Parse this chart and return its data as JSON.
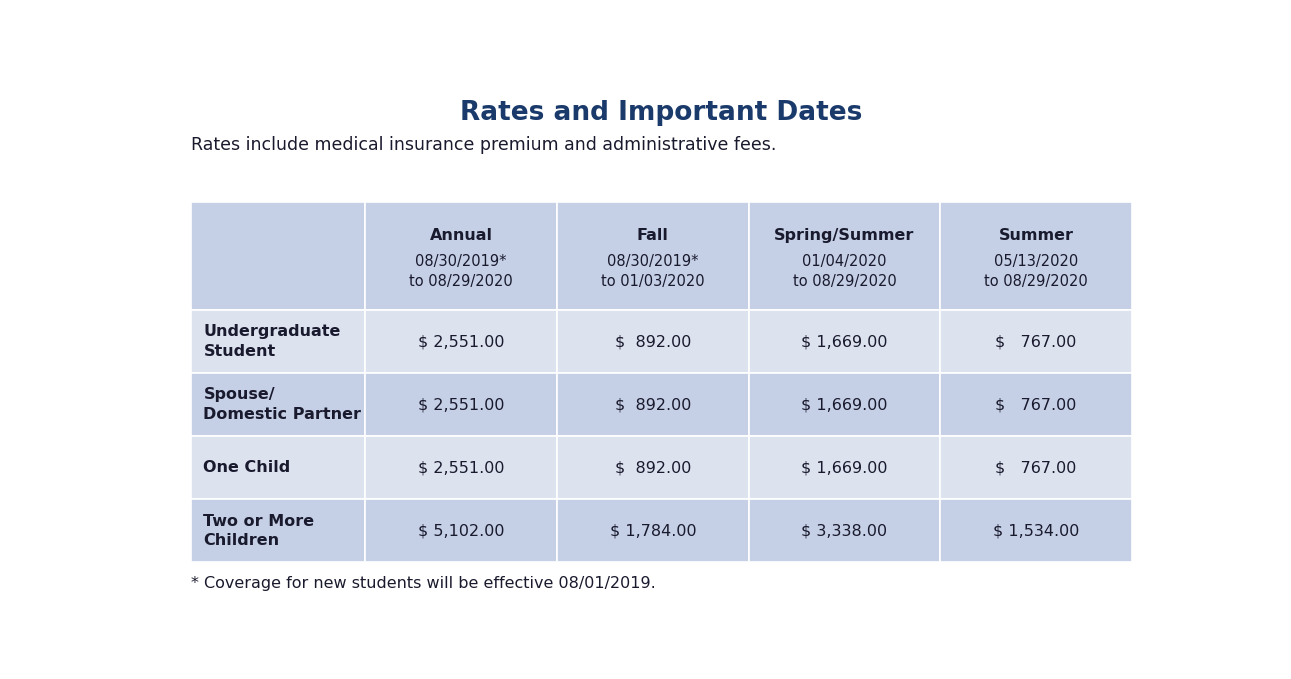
{
  "title": "Rates and Important Dates",
  "subtitle": "Rates include medical insurance premium and administrative fees.",
  "footnote": "* Coverage for new students will be effective 08/01/2019.",
  "title_color": "#1a3a6b",
  "text_color": "#1a1a2e",
  "header_bg": "#c5d0e6",
  "row_bg_odd": "#dce3ef",
  "row_bg_even": "#c5d0e6",
  "header_data": [
    {
      "bold": "Annual",
      "dates": "08/30/2019*\nto 08/29/2020"
    },
    {
      "bold": "Fall",
      "dates": "08/30/2019*\nto 01/03/2020"
    },
    {
      "bold": "Spring/Summer",
      "dates": "01/04/2020\nto 08/29/2020"
    },
    {
      "bold": "Summer",
      "dates": "05/13/2020\nto 08/29/2020"
    }
  ],
  "rows": [
    {
      "label": "Undergraduate\nStudent",
      "values": [
        "$ 2,551.00",
        "$  892.00",
        "$ 1,669.00",
        "$   767.00"
      ]
    },
    {
      "label": "Spouse/\nDomestic Partner",
      "values": [
        "$ 2,551.00",
        "$  892.00",
        "$ 1,669.00",
        "$   767.00"
      ]
    },
    {
      "label": "One Child",
      "values": [
        "$ 2,551.00",
        "$  892.00",
        "$ 1,669.00",
        "$   767.00"
      ]
    },
    {
      "label": "Two or More\nChildren",
      "values": [
        "$ 5,102.00",
        "$ 1,784.00",
        "$ 3,338.00",
        "$ 1,534.00"
      ]
    }
  ]
}
